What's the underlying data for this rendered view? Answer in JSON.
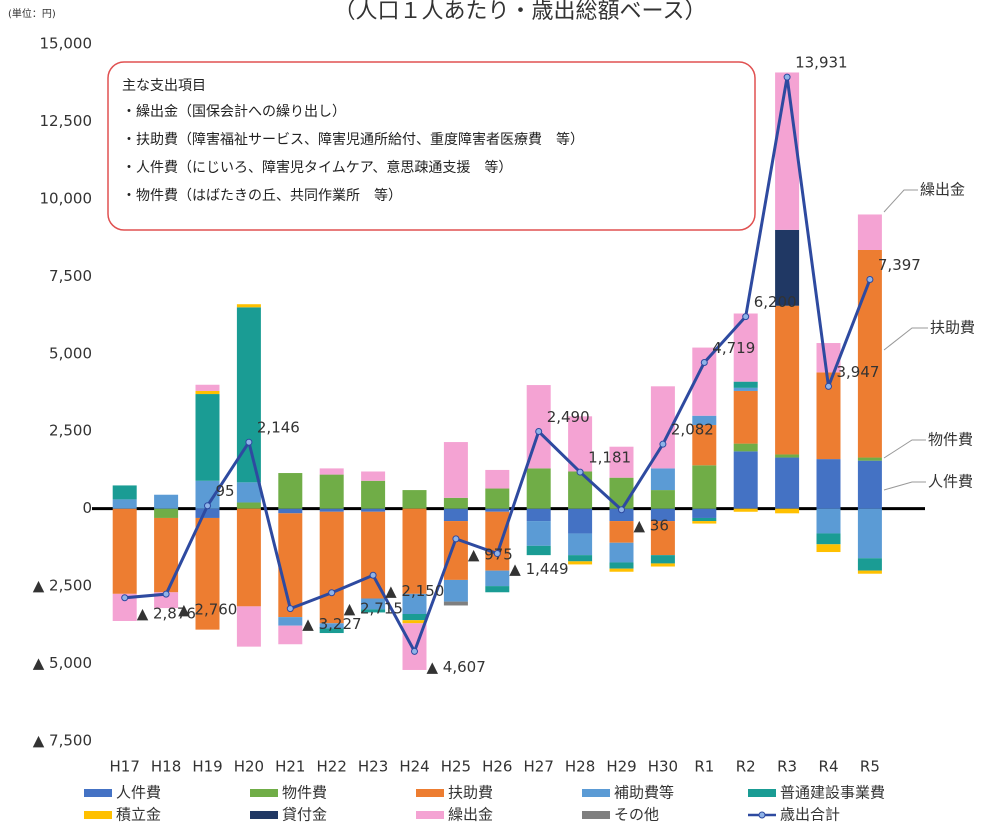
{
  "chart_data": {
    "type": "stacked_bar_line",
    "title": "（人口１人あたり・歳出総額ベース）",
    "unit_label": "(単位：円)",
    "annotation": {
      "heading": "主な支出項目",
      "lines": [
        "・繰出金（国保会計への繰り出し）",
        "・扶助費（障害福祉サービス、障害児通所給付、重度障害者医療費　等）",
        "・人件費（にじいろ、障害児タイムケア、意思疎通支援　等）",
        "・物件費（はばたきの丘、共同作業所　等）"
      ]
    },
    "callouts": [
      "繰出金",
      "扶助費",
      "物件費",
      "人件費"
    ],
    "categories": [
      "H17",
      "H18",
      "H19",
      "H20",
      "H21",
      "H22",
      "H23",
      "H24",
      "H25",
      "H26",
      "H27",
      "H28",
      "H29",
      "H30",
      "R1",
      "R2",
      "R3",
      "R4",
      "R5"
    ],
    "ylim": [
      -7500,
      15000
    ],
    "yticks": [
      {
        "value": -7500,
        "label": "▲ 7,500"
      },
      {
        "value": -5000,
        "label": "▲ 5,000"
      },
      {
        "value": -2500,
        "label": "▲ 2,500"
      },
      0,
      {
        "value": 2500,
        "label": "2,500"
      },
      {
        "value": 5000,
        "label": "5,000"
      },
      {
        "value": 7500,
        "label": "7,500"
      },
      {
        "value": 10000,
        "label": "10,000"
      },
      {
        "value": 12500,
        "label": "12,500"
      },
      {
        "value": 15000,
        "label": "15,000"
      }
    ],
    "series": [
      {
        "name": "人件費",
        "color": "#4472c4",
        "values": [
          0,
          0,
          -300,
          0,
          -150,
          -100,
          -100,
          0,
          -400,
          -100,
          -400,
          -800,
          -400,
          -400,
          -300,
          1850,
          1650,
          1600,
          1550
        ]
      },
      {
        "name": "物件費",
        "color": "#70ad47",
        "values": [
          0,
          -300,
          0,
          200,
          1150,
          1100,
          900,
          600,
          350,
          650,
          1300,
          1200,
          1000,
          600,
          1400,
          250,
          100,
          0,
          100
        ]
      },
      {
        "name": "扶助費",
        "color": "#ed7d31",
        "values": [
          -2750,
          -2400,
          -3605,
          -3154,
          -3350,
          -3600,
          -2800,
          -2750,
          -1900,
          -1900,
          0,
          0,
          -700,
          -1100,
          1300,
          1700,
          4800,
          2800,
          6700
        ]
      },
      {
        "name": "補助費等",
        "color": "#5b9bd5",
        "values": [
          300,
          450,
          900,
          650,
          -277,
          -165,
          -350,
          -650,
          -700,
          -500,
          -800,
          -700,
          -636,
          700,
          300,
          100,
          0,
          -800,
          -1600
        ]
      },
      {
        "name": "普通建設事業費",
        "color": "#1a9c94",
        "values": [
          450,
          0,
          2800,
          5650,
          0,
          -150,
          -100,
          -200,
          0,
          -199,
          -300,
          -200,
          -200,
          -268,
          -100,
          200,
          0,
          -350,
          -400
        ]
      },
      {
        "name": "積立金",
        "color": "#ffc000",
        "values": [
          0,
          0,
          100,
          100,
          0,
          0,
          0,
          -100,
          0,
          0,
          0,
          -100,
          -100,
          -100,
          -81,
          -100,
          -150,
          -250,
          -100
        ]
      },
      {
        "name": "貸付金",
        "color": "#203864",
        "values": [
          0,
          0,
          0,
          0,
          0,
          0,
          0,
          0,
          0,
          0,
          0,
          0,
          0,
          0,
          0,
          0,
          2450,
          0,
          0
        ]
      },
      {
        "name": "繰出金",
        "color": "#f4a3d3",
        "values": [
          -876,
          -510,
          200,
          -1300,
          -600,
          200,
          300,
          -1507,
          1800,
          600,
          2690,
          1781,
          1000,
          2650,
          2200,
          2200,
          5081,
          947,
          1147
        ]
      },
      {
        "name": "その他",
        "color": "#7f7f7f",
        "values": [
          0,
          0,
          0,
          0,
          0,
          0,
          0,
          0,
          -125,
          0,
          0,
          0,
          0,
          0,
          0,
          0,
          0,
          0,
          0
        ]
      },
      {
        "name": "歳出合計",
        "color": "#2e4aa0",
        "kind": "line",
        "values": [
          -2876,
          -2760,
          95,
          2146,
          -3227,
          -2715,
          -2150,
          -4607,
          -975,
          -1449,
          2490,
          1181,
          -36,
          2082,
          4719,
          6200,
          13931,
          3947,
          7397
        ],
        "value_labels": [
          "▲ 2,876",
          "▲ 2,760",
          "95",
          "2,146",
          "▲ 3,227",
          "▲ 2,715",
          "▲ 2,150",
          "▲ 4,607",
          "▲ 975",
          "▲ 1,449",
          "2,490",
          "1,181",
          "▲ 36",
          "2,082",
          "4,719",
          "6,200",
          "13,931",
          "3,947",
          "7,397"
        ]
      }
    ]
  }
}
